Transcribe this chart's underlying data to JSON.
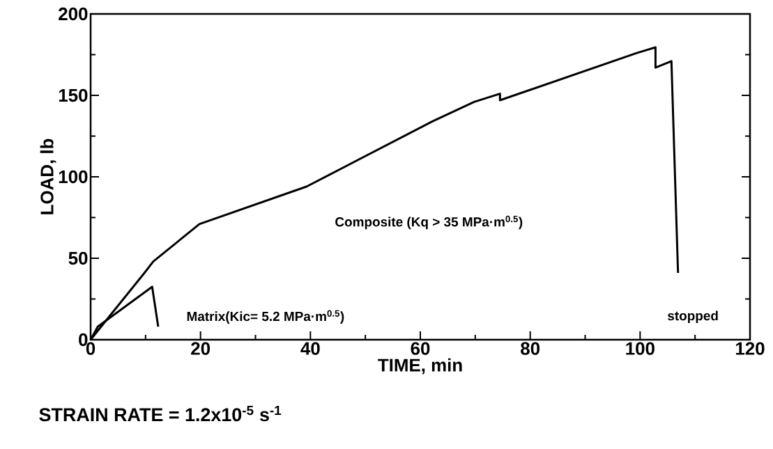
{
  "chart_data": {
    "type": "line",
    "xlabel": "TIME, min",
    "ylabel": "LOAD, lb",
    "xlim": [
      0,
      120
    ],
    "ylim": [
      0,
      200
    ],
    "xticks": [
      0,
      20,
      40,
      60,
      80,
      100,
      120
    ],
    "yticks": [
      0,
      50,
      100,
      150,
      200
    ],
    "series": [
      {
        "name": "Matrix(Kic= 5.2 MPa·m$^{0.5}$)",
        "color": "#000000",
        "x": [
          0,
          1.3,
          11.2,
          12.3
        ],
        "values": [
          0,
          8,
          32.5,
          8
        ]
      },
      {
        "name": "Composite (Kq > 35 MPa·m$^{0.5}$)",
        "color": "#000000",
        "x": [
          0,
          9.8,
          11.4,
          19.8,
          39.3,
          62.2,
          69.8,
          74.5,
          74.5,
          99.4,
          102.8,
          102.8,
          105.7,
          106.9
        ],
        "values": [
          0,
          41,
          48,
          71,
          94,
          134,
          146,
          151,
          147,
          176,
          179.5,
          167,
          171,
          41
        ]
      }
    ],
    "annotations": [
      "stopped",
      "STRAIN RATE = 1.2x10$^{-5}$ s$^{-1}$"
    ],
    "marker": "none",
    "line_style": "solid"
  }
}
